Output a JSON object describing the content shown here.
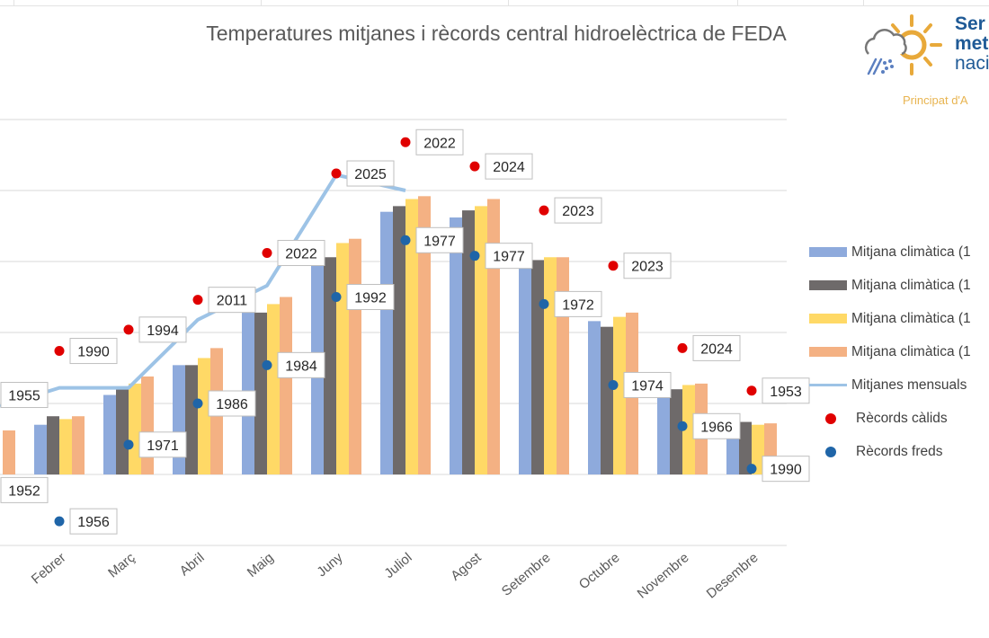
{
  "title": "Temperatures mitjanes i rècords central hidroelèctrica de FEDA",
  "logo": {
    "line1": "Ser",
    "line2": "met",
    "line3": "naci",
    "subtitle": "Principat d'A",
    "icon": "sun-cloud-rain-icon"
  },
  "colors": {
    "series1": "#8eaadc",
    "series2": "#6e6a6a",
    "series3": "#ffd966",
    "series4": "#f4b183",
    "line": "#9dc3e6",
    "warm": "#e00000",
    "cold": "#1f65a8",
    "grid": "#d9d9d9"
  },
  "chart_data": {
    "type": "bar",
    "title": "Temperatures mitjanes i rècords central hidroelèctrica de FEDA",
    "categories": [
      "",
      "Febrer",
      "Març",
      "Abril",
      "Maig",
      "Juny",
      "Juliol",
      "Agost",
      "Setembre",
      "Octubre",
      "Novembre",
      "Desembre"
    ],
    "ylim": [
      -5,
      25
    ],
    "grid_step": 5,
    "grid": true,
    "legend_position": "right",
    "series": [
      {
        "name": "Mitjana climàtica (1",
        "type": "bar",
        "values": [
          null,
          3.5,
          5.6,
          7.7,
          11.4,
          14.7,
          18.5,
          18.1,
          15.1,
          10.8,
          5.9,
          3.4
        ]
      },
      {
        "name": "Mitjana climàtica (1",
        "type": "bar",
        "values": [
          null,
          4.1,
          6.0,
          7.7,
          11.4,
          15.3,
          18.9,
          18.6,
          15.1,
          10.4,
          6.0,
          3.7
        ]
      },
      {
        "name": "Mitjana climàtica (1",
        "type": "bar",
        "values": [
          null,
          3.9,
          6.4,
          8.2,
          12.0,
          16.3,
          19.4,
          18.9,
          15.3,
          11.1,
          6.3,
          3.5
        ]
      },
      {
        "name": "Mitjana climàtica (1",
        "type": "bar",
        "values": [
          3.1,
          4.1,
          6.9,
          8.9,
          12.5,
          16.6,
          19.6,
          19.4,
          15.3,
          11.4,
          6.4,
          3.6
        ]
      },
      {
        "name": "Mitjanes mensuals",
        "type": "line",
        "values": [
          4.8,
          6.1,
          6.1,
          10.9,
          13.3,
          21.1,
          20.0,
          null,
          null,
          null,
          null,
          null
        ]
      },
      {
        "name": "Rècords càlids",
        "type": "scatter",
        "values": [
          5.6,
          8.7,
          10.2,
          12.3,
          15.6,
          21.2,
          23.4,
          21.7,
          18.6,
          14.7,
          8.9,
          5.9
        ],
        "labels": [
          "1955",
          "1990",
          "1994",
          "2011",
          "2022",
          "2025",
          "2022",
          "2024",
          "2023",
          "2023",
          "2024",
          "1953"
        ]
      },
      {
        "name": "Rècords freds",
        "type": "scatter",
        "values": [
          -1.1,
          -3.3,
          2.1,
          5.0,
          7.7,
          12.5,
          16.5,
          15.4,
          12.0,
          6.3,
          3.4,
          0.4
        ],
        "labels": [
          "1952",
          "1956",
          "1971",
          "1986",
          "1984",
          "1992",
          "1977",
          "1977",
          "1972",
          "1974",
          "1966",
          "1990"
        ]
      }
    ]
  }
}
